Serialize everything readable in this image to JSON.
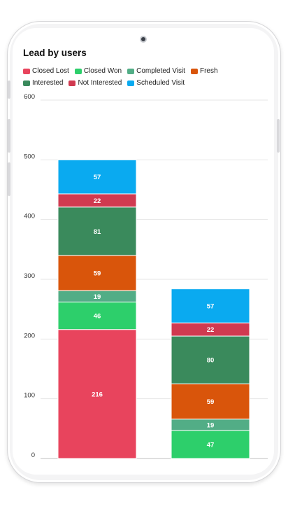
{
  "chart_data": {
    "type": "bar",
    "stacked": true,
    "title": "Lead by users",
    "categories": [
      "",
      ""
    ],
    "ylim": [
      0,
      600
    ],
    "yticks": [
      0,
      100,
      200,
      300,
      400,
      500,
      600
    ],
    "grid": true,
    "legend_position": "top-left",
    "series": [
      {
        "name": "Closed Lost",
        "color": "#e8445d",
        "values": [
          216,
          0
        ]
      },
      {
        "name": "Closed Won",
        "color": "#2dcf6b",
        "values": [
          46,
          47
        ]
      },
      {
        "name": "Completed Visit",
        "color": "#52ad86",
        "values": [
          19,
          19
        ]
      },
      {
        "name": "Fresh",
        "color": "#d9550b",
        "values": [
          59,
          59
        ]
      },
      {
        "name": "Interested",
        "color": "#3a8a5c",
        "values": [
          81,
          80
        ]
      },
      {
        "name": "Not Interested",
        "color": "#d03a50",
        "values": [
          22,
          22
        ]
      },
      {
        "name": "Scheduled Visit",
        "color": "#0aaaf0",
        "values": [
          57,
          57
        ]
      }
    ]
  }
}
